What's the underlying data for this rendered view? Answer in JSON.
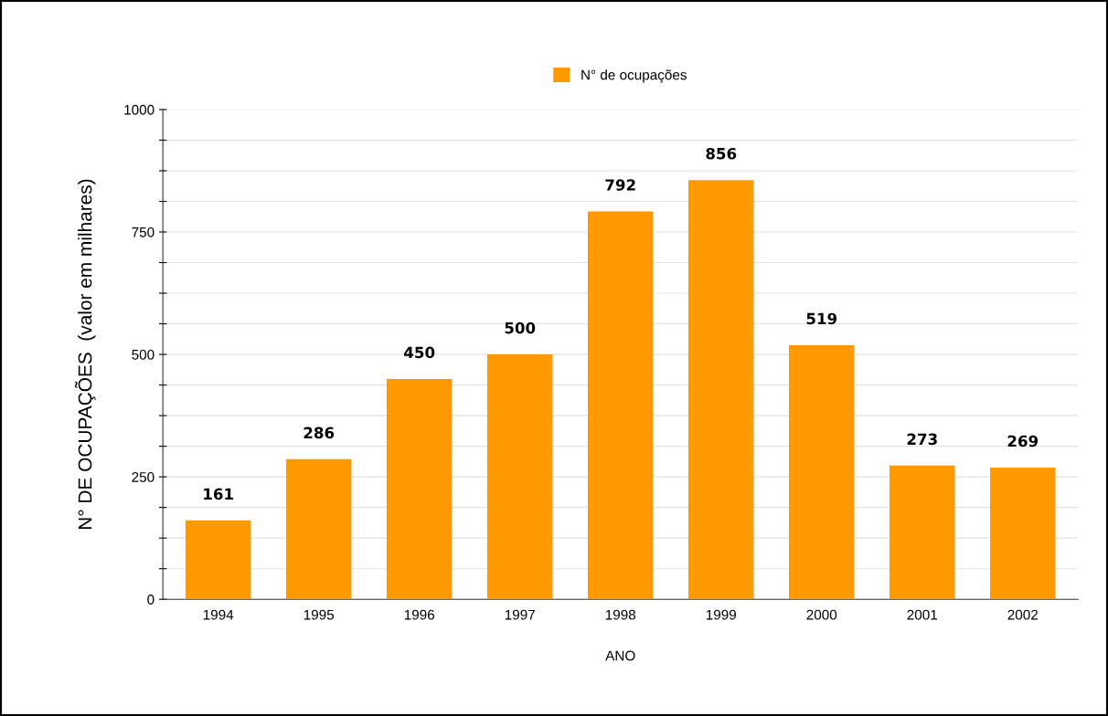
{
  "chart_data": {
    "type": "bar",
    "xlabel": "ANO",
    "ylabel": "N° DE OCUPAÇÕES  (valor em milhares)",
    "categories": [
      "1994",
      "1995",
      "1996",
      "1997",
      "1998",
      "1999",
      "2000",
      "2001",
      "2002"
    ],
    "series": [
      {
        "name": "N° de ocupações",
        "color": "#ff9900",
        "values": [
          161,
          286,
          450,
          500,
          792,
          856,
          519,
          273,
          269
        ]
      }
    ],
    "ylim": [
      0,
      1000
    ],
    "yticks": [
      0,
      {
        "value": 62.5,
        "label": null
      },
      {
        "value": 125,
        "label": null
      },
      {
        "value": 187.5,
        "label": null
      },
      250,
      {
        "value": 312.5,
        "label": null
      },
      {
        "value": 375,
        "label": null
      },
      {
        "value": 437.5,
        "label": null
      },
      500,
      {
        "value": 562.5,
        "label": null
      },
      {
        "value": 625,
        "label": null
      },
      {
        "value": 687.5,
        "label": null
      },
      750,
      {
        "value": 812.5,
        "label": null
      },
      {
        "value": 875,
        "label": null
      },
      {
        "value": 937.5,
        "label": null
      },
      1000
    ],
    "grid": "y",
    "legend": "top",
    "data_labels": true
  }
}
